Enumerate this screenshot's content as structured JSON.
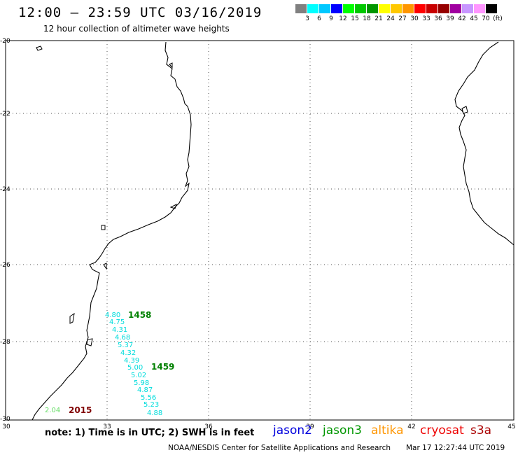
{
  "title": "12:00 – 23:59 UTC 03/16/2019",
  "subtitle": "12 hour collection of altimeter wave heights",
  "colorbar": {
    "colors": [
      "#808080",
      "#00ffff",
      "#00c8ff",
      "#0000ff",
      "#00ff00",
      "#00c800",
      "#009600",
      "#ffff00",
      "#ffc800",
      "#ff9600",
      "#ff0000",
      "#c80000",
      "#960000",
      "#a000a0",
      "#c896ff",
      "#ff96ff",
      "#000000"
    ],
    "labels": [
      "3",
      "6",
      "9",
      "12",
      "15",
      "18",
      "21",
      "24",
      "27",
      "30",
      "33",
      "36",
      "39",
      "42",
      "45",
      "70",
      "(ft)"
    ]
  },
  "axes": {
    "lat_labels": [
      "-20",
      "-22",
      "-24",
      "-26",
      "-28",
      "-30"
    ],
    "lon_labels": [
      "30",
      "33",
      "36",
      "39",
      "42",
      "45"
    ]
  },
  "wave_readings": [
    {
      "value": "4.80",
      "color": "#00dcdc"
    },
    {
      "value": "4.75",
      "color": "#00dcdc"
    },
    {
      "value": "4.31",
      "color": "#00dcdc"
    },
    {
      "value": "4.68",
      "color": "#00dcdc"
    },
    {
      "value": "5.37",
      "color": "#00dcdc"
    },
    {
      "value": "4.32",
      "color": "#00dcdc"
    },
    {
      "value": "4.39",
      "color": "#00dcdc"
    },
    {
      "value": "5.00",
      "color": "#00dcdc"
    },
    {
      "value": "5.02",
      "color": "#00dcdc"
    },
    {
      "value": "5.98",
      "color": "#00dcdc"
    },
    {
      "value": "4.87",
      "color": "#00dcdc"
    },
    {
      "value": "5.56",
      "color": "#00dcdc"
    },
    {
      "value": "5.23",
      "color": "#00dcdc"
    },
    {
      "value": "4.88",
      "color": "#00dcdc"
    },
    {
      "value": "2.04",
      "color": "#66dd66"
    }
  ],
  "time_labels": [
    {
      "value": "1458",
      "color": "#008000"
    },
    {
      "value": "1459",
      "color": "#008000"
    },
    {
      "value": "2015",
      "color": "#800000"
    }
  ],
  "note": "note: 1) Time is in UTC; 2) SWH is in feet",
  "satellites": [
    {
      "name": "jason2",
      "color": "#0000dd"
    },
    {
      "name": "jason3",
      "color": "#009600"
    },
    {
      "name": "altika",
      "color": "#ff9600"
    },
    {
      "name": "cryosat",
      "color": "#ee0000"
    },
    {
      "name": "s3a",
      "color": "#aa0000"
    }
  ],
  "credit": "NOAA/NESDIS Center for Satellite Applications and Research",
  "timestamp": "Mar 17 12:27:44 UTC 2019"
}
